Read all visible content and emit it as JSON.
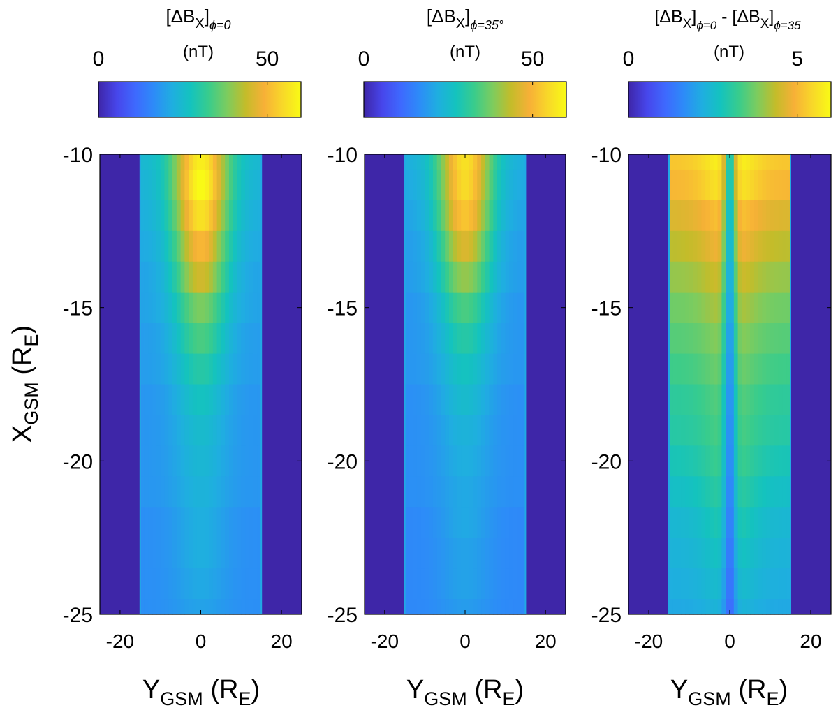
{
  "colormap_stops": [
    "#3e26a8",
    "#4746eb",
    "#3e69fe",
    "#2d8bf8",
    "#1faee0",
    "#14c3be",
    "#39cc8c",
    "#7dcc5e",
    "#c4bc2a",
    "#f7b037",
    "#f8d829",
    "#f9fb15"
  ],
  "frame_color": "#000000",
  "chart_data": [
    {
      "type": "heatmap",
      "title_main": "[ΔB",
      "title_sub1": "X",
      "title_mid": "]",
      "title_sub2": "ϕ=0",
      "units": "(nT)",
      "colorbar": {
        "min": 0,
        "max": 60,
        "ticks": [
          0,
          50
        ],
        "tick_labels": [
          "0",
          "50"
        ]
      },
      "xlabel_main": "Y",
      "xlabel_sub": "GSM",
      "xlabel_rest": "(R",
      "xlabel_sub2": "E",
      "xlabel_close": ")",
      "xlim": [
        -25,
        25
      ],
      "xticks": [
        -20,
        0,
        20
      ],
      "xtick_labels": [
        "-20",
        "0",
        "20"
      ],
      "ylim": [
        -25,
        -10
      ],
      "yticks": [
        -10,
        -15,
        -20,
        -25
      ],
      "ytick_labels": [
        "-10",
        "-15",
        "-20",
        "-25"
      ],
      "y_extent": [
        -15,
        15
      ],
      "x_rows": [
        -10,
        -11,
        -12,
        -13,
        -14,
        -15,
        -16,
        -17,
        -18,
        -19,
        -20,
        -21,
        -22,
        -23,
        -24,
        -25
      ],
      "peak_values": [
        58,
        60,
        56,
        50,
        45,
        38,
        34,
        30,
        27,
        25,
        24,
        23,
        22,
        22,
        21,
        20
      ],
      "edge_values": [
        24,
        23,
        22,
        21,
        20,
        20,
        19,
        19,
        18,
        18,
        18,
        18,
        17,
        17,
        17,
        17
      ],
      "outside_value": 0,
      "dip_depth": 0
    },
    {
      "type": "heatmap",
      "title_main": "[ΔB",
      "title_sub1": "X",
      "title_mid": "]",
      "title_sub2": "ϕ=35°",
      "units": "(nT)",
      "colorbar": {
        "min": 0,
        "max": 60,
        "ticks": [
          0,
          50
        ],
        "tick_labels": [
          "0",
          "50"
        ]
      },
      "xlabel_main": "Y",
      "xlabel_sub": "GSM",
      "xlabel_rest": "(R",
      "xlabel_sub2": "E",
      "xlabel_close": ")",
      "xlim": [
        -25,
        25
      ],
      "xticks": [
        -20,
        0,
        20
      ],
      "xtick_labels": [
        "-20",
        "0",
        "20"
      ],
      "ylim": [
        -25,
        -10
      ],
      "yticks": [
        -10,
        -15,
        -20,
        -25
      ],
      "ytick_labels": [
        "-10",
        "-15",
        "-20",
        "-25"
      ],
      "y_extent": [
        -15,
        15
      ],
      "x_rows": [
        -10,
        -11,
        -12,
        -13,
        -14,
        -15,
        -16,
        -17,
        -18,
        -19,
        -20,
        -21,
        -22,
        -23,
        -24,
        -25
      ],
      "peak_values": [
        56,
        55,
        52,
        46,
        40,
        34,
        30,
        27,
        25,
        23,
        22,
        21,
        21,
        20,
        20,
        19
      ],
      "edge_values": [
        22,
        21,
        20,
        19,
        19,
        18,
        18,
        18,
        17,
        17,
        17,
        17,
        16,
        16,
        16,
        16
      ],
      "outside_value": 0,
      "dip_depth": 0
    },
    {
      "type": "heatmap",
      "title_main": "[ΔB",
      "title_sub1": "X",
      "title_mid": "]",
      "title_sub2": "ϕ=0",
      "title_sep": " - [ΔB",
      "title_sub3": "X",
      "title_mid2": "]",
      "title_sub4": "ϕ=35",
      "units": "(nT)",
      "colorbar": {
        "min": 0,
        "max": 6,
        "ticks": [
          0,
          5
        ],
        "tick_labels": [
          "0",
          "5"
        ]
      },
      "xlabel_main": "Y",
      "xlabel_sub": "GSM",
      "xlabel_rest": "(R",
      "xlabel_sub2": "E",
      "xlabel_close": ")",
      "xlim": [
        -25,
        25
      ],
      "xticks": [
        -20,
        0,
        20
      ],
      "xtick_labels": [
        "-20",
        "0",
        "20"
      ],
      "ylim": [
        -25,
        -10
      ],
      "yticks": [
        -10,
        -15,
        -20,
        -25
      ],
      "ytick_labels": [
        "-10",
        "-15",
        "-20",
        "-25"
      ],
      "y_extent": [
        -15,
        15
      ],
      "x_rows": [
        -10,
        -11,
        -12,
        -13,
        -14,
        -15,
        -16,
        -17,
        -18,
        -19,
        -20,
        -21,
        -22,
        -23,
        -24,
        -25
      ],
      "peak_values": [
        6.0,
        5.8,
        5.3,
        5.0,
        4.6,
        4.3,
        4.0,
        3.8,
        3.6,
        3.5,
        3.4,
        3.2,
        3.0,
        2.8,
        2.6,
        2.4
      ],
      "edge_values": [
        5.2,
        5.0,
        4.6,
        4.3,
        4.0,
        3.7,
        3.5,
        3.3,
        3.1,
        3.0,
        2.8,
        2.6,
        2.4,
        2.3,
        2.2,
        2.1
      ],
      "outside_value": 0,
      "dip_depth": 0.55
    }
  ],
  "ylabel": {
    "main": "X",
    "sub": "GSM",
    "rest": "(R",
    "sub2": "E",
    "close": ")"
  }
}
